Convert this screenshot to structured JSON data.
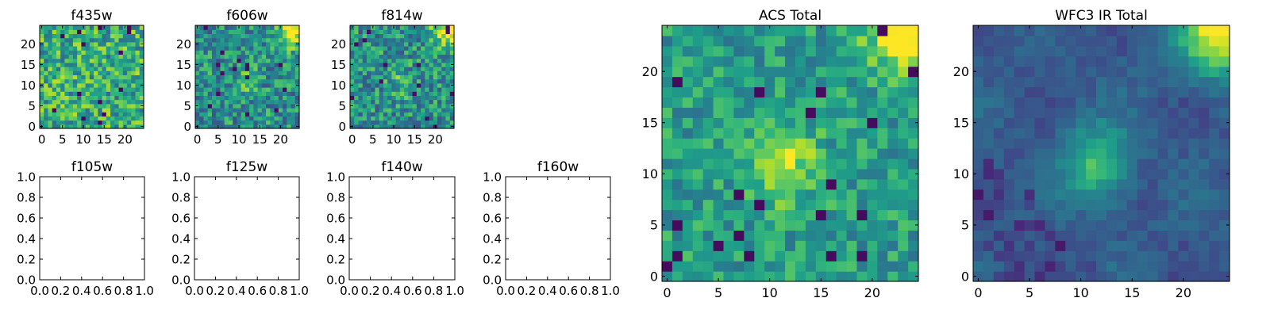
{
  "chart_data": [
    {
      "type": "heatmap",
      "title": "f435w",
      "xlim": [
        -0.5,
        24.5
      ],
      "ylim": [
        -0.5,
        24.5
      ],
      "xticks": [
        0,
        5,
        10,
        15,
        20
      ],
      "yticks": [
        0,
        5,
        10,
        15,
        20
      ],
      "grid_size": 25,
      "colormap": "viridis",
      "pattern": "noise",
      "seed": 11
    },
    {
      "type": "heatmap",
      "title": "f606w",
      "xlim": [
        -0.5,
        24.5
      ],
      "ylim": [
        -0.5,
        24.5
      ],
      "xticks": [
        0,
        5,
        10,
        15,
        20
      ],
      "yticks": [
        0,
        5,
        10,
        15,
        20
      ],
      "grid_size": 25,
      "colormap": "viridis",
      "pattern": "noise_corner",
      "seed": 23
    },
    {
      "type": "heatmap",
      "title": "f814w",
      "xlim": [
        -0.5,
        24.5
      ],
      "ylim": [
        -0.5,
        24.5
      ],
      "xticks": [
        0,
        5,
        10,
        15,
        20
      ],
      "yticks": [
        0,
        5,
        10,
        15,
        20
      ],
      "grid_size": 25,
      "colormap": "viridis",
      "pattern": "noise_corner",
      "seed": 37
    },
    {
      "type": "empty",
      "title": "f105w",
      "xlim": [
        0,
        1
      ],
      "ylim": [
        0,
        1
      ],
      "xticks": [
        "0.0",
        "0.2",
        "0.4",
        "0.6",
        "0.8",
        "1.0"
      ],
      "yticks": [
        "0.0",
        "0.2",
        "0.4",
        "0.6",
        "0.8",
        "1.0"
      ]
    },
    {
      "type": "empty",
      "title": "f125w",
      "xlim": [
        0,
        1
      ],
      "ylim": [
        0,
        1
      ],
      "xticks": [
        "0.0",
        "0.2",
        "0.4",
        "0.6",
        "0.8",
        "1.0"
      ],
      "yticks": [
        "0.0",
        "0.2",
        "0.4",
        "0.6",
        "0.8",
        "1.0"
      ]
    },
    {
      "type": "empty",
      "title": "f140w",
      "xlim": [
        0,
        1
      ],
      "ylim": [
        0,
        1
      ],
      "xticks": [
        "0.0",
        "0.2",
        "0.4",
        "0.6",
        "0.8",
        "1.0"
      ],
      "yticks": [
        "0.0",
        "0.2",
        "0.4",
        "0.6",
        "0.8",
        "1.0"
      ]
    },
    {
      "type": "empty",
      "title": "f160w",
      "xlim": [
        0,
        1
      ],
      "ylim": [
        0,
        1
      ],
      "xticks": [
        "0.0",
        "0.2",
        "0.4",
        "0.6",
        "0.8",
        "1.0"
      ],
      "yticks": [
        "0.0",
        "0.2",
        "0.4",
        "0.6",
        "0.8",
        "1.0"
      ]
    },
    {
      "type": "heatmap",
      "title": "ACS Total",
      "xlim": [
        -0.5,
        24.5
      ],
      "ylim": [
        -0.5,
        24.5
      ],
      "xticks": [
        0,
        5,
        10,
        15,
        20
      ],
      "yticks": [
        0,
        5,
        10,
        15,
        20
      ],
      "grid_size": 25,
      "colormap": "viridis",
      "pattern": "acs",
      "seed": 51
    },
    {
      "type": "heatmap",
      "title": "WFC3 IR Total",
      "xlim": [
        -0.5,
        24.5
      ],
      "ylim": [
        -0.5,
        24.5
      ],
      "xticks": [
        0,
        5,
        10,
        15,
        20
      ],
      "yticks": [
        0,
        5,
        10,
        15,
        20
      ],
      "grid_size": 25,
      "colormap": "viridis",
      "pattern": "ir",
      "seed": 77
    }
  ]
}
